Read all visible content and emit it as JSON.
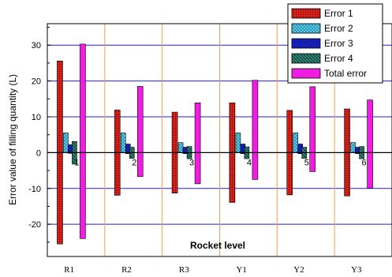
{
  "chart_data": {
    "type": "bar",
    "xlabel": "Rocket level",
    "ylabel": "Error value of filling quantity (L)",
    "ylim": [
      -29,
      36
    ],
    "yticks": [
      -20,
      -10,
      0,
      10,
      20,
      30
    ],
    "grid": true,
    "legend_position": "top-right",
    "categories": [
      "R1",
      "R2",
      "R3",
      "Y1",
      "Y2",
      "Y3"
    ],
    "group_numbers": [
      "1",
      "2",
      "3",
      "4",
      "5",
      "6"
    ],
    "series": [
      {
        "name": "Error 1",
        "low": [
          -25.5,
          -11.9,
          -11.3,
          -13.9,
          -11.8,
          -12.1
        ],
        "high": [
          25.6,
          11.9,
          11.3,
          13.9,
          11.8,
          12.2
        ]
      },
      {
        "name": "Error 2",
        "low": [
          0,
          0,
          0,
          0,
          0,
          0
        ],
        "high": [
          5.5,
          5.5,
          2.8,
          5.5,
          5.5,
          2.8
        ]
      },
      {
        "name": "Error 3",
        "low": [
          -0.2,
          -0.3,
          -0.3,
          -0.3,
          -0.3,
          -0.3
        ],
        "high": [
          2.2,
          2.4,
          1.5,
          2.4,
          2.4,
          1.5
        ]
      },
      {
        "name": "Error 4",
        "low": [
          -3.2,
          -1.6,
          -1.7,
          -1.7,
          -1.6,
          -1.7
        ],
        "high": [
          3.1,
          1.5,
          1.7,
          1.6,
          1.5,
          1.7
        ]
      },
      {
        "name": "Total error",
        "low": [
          -24,
          -6.7,
          -8.7,
          -7.5,
          -5.3,
          -9.9
        ],
        "high": [
          30.3,
          18.5,
          13.9,
          20.2,
          18.4,
          14.7
        ]
      }
    ],
    "colors": {
      "error1": "#e8251c",
      "error2": "#56e0e8",
      "error3": "#1c2ee0",
      "error4": "#1f6f64",
      "total": "#f01ce0",
      "grid_h": "#2222cc",
      "grid_v": "#f0a050",
      "zero_line": "#000000"
    }
  }
}
